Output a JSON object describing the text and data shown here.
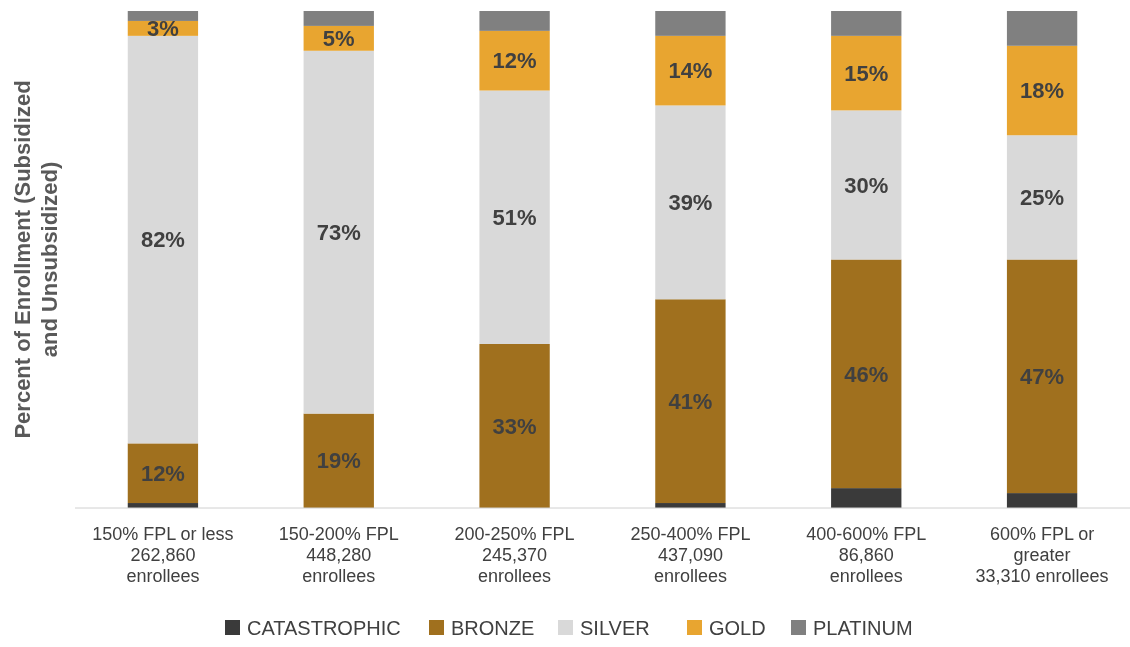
{
  "chart_data": {
    "type": "bar",
    "stacked": true,
    "ylim": [
      0,
      100
    ],
    "ylabel": "Percent of Enrollment (Subsidized and Unsubsidized)",
    "legend": "bottom",
    "categories": [
      "150% FPL or less\n262,860\nenrollees",
      "150-200% FPL\n448,280\nenrollees",
      "200-250% FPL\n245,370\nenrollees",
      "250-400% FPL\n437,090\nenrollees",
      "400-600% FPL\n86,860\nenrollees",
      "600% FPL or\ngreater\n33,310 enrollees"
    ],
    "series": [
      {
        "name": "CATASTROPHIC",
        "color": "#3a3a3a",
        "values": [
          1,
          0,
          0,
          1,
          4,
          3
        ],
        "value_labels": [
          null,
          null,
          null,
          null,
          null,
          null
        ]
      },
      {
        "name": "BRONZE",
        "color": "#a0701e",
        "values": [
          12,
          19,
          33,
          41,
          46,
          47
        ],
        "value_labels": [
          "12%",
          "19%",
          "33%",
          "41%",
          "46%",
          "47%"
        ]
      },
      {
        "name": "SILVER",
        "color": "#d9d9d9",
        "values": [
          82,
          73,
          51,
          39,
          30,
          25
        ],
        "value_labels": [
          "82%",
          "73%",
          "51%",
          "39%",
          "30%",
          "25%"
        ]
      },
      {
        "name": "GOLD",
        "color": "#e8a530",
        "values": [
          3,
          5,
          12,
          14,
          15,
          18
        ],
        "value_labels": [
          "3%",
          "5%",
          "12%",
          "14%",
          "15%",
          "18%"
        ]
      },
      {
        "name": "PLATINUM",
        "color": "#808080",
        "values": [
          2,
          3,
          4,
          5,
          5,
          7
        ],
        "value_labels": [
          null,
          null,
          null,
          null,
          null,
          null
        ]
      }
    ]
  }
}
